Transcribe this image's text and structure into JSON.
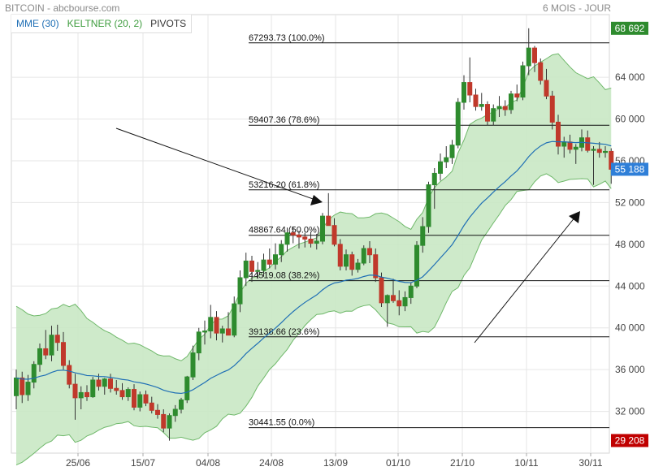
{
  "header": {
    "title": "BITCOIN - abcbourse.com",
    "period": "6 MOIS - JOUR"
  },
  "legend": {
    "mme": "MME (30)",
    "keltner": "KELTNER (20, 2)",
    "pivots": "PIVOTS"
  },
  "colors": {
    "up": "#2e8b2e",
    "down": "#c0392b",
    "band_fill": "#c9e8c4",
    "band_line": "#6fb86a",
    "mme": "#1f6fb5",
    "last_price_tag": "#2f7fd8",
    "high_tag": "#2e8b2e",
    "low_tag": "#c00000"
  },
  "chart_data": {
    "type": "candlestick",
    "y_ticks": [
      {
        "value": 32000,
        "label": "32 000"
      },
      {
        "value": 36000,
        "label": "36 000"
      },
      {
        "value": 40000,
        "label": "40 000"
      },
      {
        "value": 44000,
        "label": "44 000"
      },
      {
        "value": 48000,
        "label": "48 000"
      },
      {
        "value": 52000,
        "label": "52 000"
      },
      {
        "value": 56000,
        "label": "56 000"
      },
      {
        "value": 60000,
        "label": "60 000"
      },
      {
        "value": 64000,
        "label": "64 000"
      }
    ],
    "x_ticks": [
      "25/06",
      "15/07",
      "04/08",
      "24/08",
      "13/09",
      "01/10",
      "21/10",
      "10/11",
      "30/11"
    ],
    "ylim": [
      28000,
      70000
    ],
    "fib_levels": [
      {
        "value": 67293.73,
        "label": "67293.73 (100.0%)"
      },
      {
        "value": 59407.36,
        "label": "59407.36 (78.6%)"
      },
      {
        "value": 53216.2,
        "label": "53216.20 (61.8%)"
      },
      {
        "value": 48867.64,
        "label": "48867.64 (50.0%)"
      },
      {
        "value": 44519.08,
        "label": "44519.08 (38.2%)"
      },
      {
        "value": 39138.66,
        "label": "39138.66 (23.6%)"
      },
      {
        "value": 30441.55,
        "label": "30441.55 (0.0%)"
      }
    ],
    "tags": {
      "high": {
        "value": 68692,
        "label": "68 692"
      },
      "last": {
        "value": 55188,
        "label": "55 188"
      },
      "low": {
        "value": 29208,
        "label": "29 208"
      }
    },
    "candles": [
      {
        "o": 33500,
        "h": 36000,
        "l": 32200,
        "c": 35200
      },
      {
        "o": 35200,
        "h": 35800,
        "l": 32800,
        "c": 33600
      },
      {
        "o": 33600,
        "h": 35500,
        "l": 33000,
        "c": 34800
      },
      {
        "o": 34800,
        "h": 36800,
        "l": 34200,
        "c": 36500
      },
      {
        "o": 36500,
        "h": 38500,
        "l": 35800,
        "c": 38000
      },
      {
        "o": 38000,
        "h": 39800,
        "l": 37000,
        "c": 37400
      },
      {
        "o": 37400,
        "h": 40200,
        "l": 36800,
        "c": 39300
      },
      {
        "o": 39300,
        "h": 40300,
        "l": 37800,
        "c": 38600
      },
      {
        "o": 38600,
        "h": 39600,
        "l": 36000,
        "c": 36400
      },
      {
        "o": 36400,
        "h": 36900,
        "l": 34200,
        "c": 34600
      },
      {
        "o": 34600,
        "h": 35600,
        "l": 31200,
        "c": 33300
      },
      {
        "o": 33300,
        "h": 34400,
        "l": 32200,
        "c": 33800
      },
      {
        "o": 33800,
        "h": 34500,
        "l": 33000,
        "c": 33400
      },
      {
        "o": 33400,
        "h": 35300,
        "l": 33300,
        "c": 35000
      },
      {
        "o": 35000,
        "h": 35600,
        "l": 34000,
        "c": 34400
      },
      {
        "o": 34400,
        "h": 35200,
        "l": 33600,
        "c": 35100
      },
      {
        "o": 35100,
        "h": 35600,
        "l": 33800,
        "c": 34200
      },
      {
        "o": 34200,
        "h": 35000,
        "l": 33600,
        "c": 34000
      },
      {
        "o": 34000,
        "h": 34700,
        "l": 33100,
        "c": 33400
      },
      {
        "o": 33400,
        "h": 34300,
        "l": 33000,
        "c": 34100
      },
      {
        "o": 34100,
        "h": 34600,
        "l": 32100,
        "c": 32400
      },
      {
        "o": 32400,
        "h": 33900,
        "l": 32000,
        "c": 33600
      },
      {
        "o": 33600,
        "h": 34000,
        "l": 32500,
        "c": 32800
      },
      {
        "o": 32800,
        "h": 33400,
        "l": 31800,
        "c": 32100
      },
      {
        "o": 32100,
        "h": 32700,
        "l": 31300,
        "c": 31700
      },
      {
        "o": 31700,
        "h": 32200,
        "l": 30000,
        "c": 30400
      },
      {
        "o": 30400,
        "h": 31800,
        "l": 29200,
        "c": 31600
      },
      {
        "o": 31600,
        "h": 32600,
        "l": 31000,
        "c": 32200
      },
      {
        "o": 32200,
        "h": 33300,
        "l": 31800,
        "c": 33100
      },
      {
        "o": 33100,
        "h": 35400,
        "l": 32800,
        "c": 35300
      },
      {
        "o": 35300,
        "h": 38300,
        "l": 35000,
        "c": 37600
      },
      {
        "o": 37600,
        "h": 40000,
        "l": 36900,
        "c": 39600
      },
      {
        "o": 39600,
        "h": 40700,
        "l": 38400,
        "c": 39700
      },
      {
        "o": 39700,
        "h": 42200,
        "l": 39000,
        "c": 41000
      },
      {
        "o": 41000,
        "h": 41600,
        "l": 38800,
        "c": 39500
      },
      {
        "o": 39500,
        "h": 40200,
        "l": 38600,
        "c": 39900
      },
      {
        "o": 39900,
        "h": 41500,
        "l": 39300,
        "c": 39300
      },
      {
        "o": 39300,
        "h": 43000,
        "l": 39100,
        "c": 42300
      },
      {
        "o": 42300,
        "h": 45500,
        "l": 41500,
        "c": 44800
      },
      {
        "o": 44800,
        "h": 47200,
        "l": 44000,
        "c": 46400
      },
      {
        "o": 46400,
        "h": 46900,
        "l": 44400,
        "c": 45400
      },
      {
        "o": 45400,
        "h": 46300,
        "l": 44700,
        "c": 45500
      },
      {
        "o": 45500,
        "h": 47100,
        "l": 44900,
        "c": 46500
      },
      {
        "o": 46500,
        "h": 47600,
        "l": 45700,
        "c": 46100
      },
      {
        "o": 46100,
        "h": 48100,
        "l": 45600,
        "c": 47000
      },
      {
        "o": 47000,
        "h": 48400,
        "l": 46300,
        "c": 48000
      },
      {
        "o": 48000,
        "h": 49600,
        "l": 47300,
        "c": 49100
      },
      {
        "o": 49100,
        "h": 49700,
        "l": 48100,
        "c": 48900
      },
      {
        "o": 48900,
        "h": 49300,
        "l": 47600,
        "c": 48700
      },
      {
        "o": 48700,
        "h": 49100,
        "l": 47700,
        "c": 48500
      },
      {
        "o": 48500,
        "h": 49200,
        "l": 47700,
        "c": 48100
      },
      {
        "o": 48100,
        "h": 49000,
        "l": 47500,
        "c": 48300
      },
      {
        "o": 48300,
        "h": 51000,
        "l": 48000,
        "c": 50700
      },
      {
        "o": 50700,
        "h": 52900,
        "l": 50000,
        "c": 49800
      },
      {
        "o": 49800,
        "h": 50500,
        "l": 47800,
        "c": 48000
      },
      {
        "o": 48000,
        "h": 48500,
        "l": 45500,
        "c": 45900
      },
      {
        "o": 45900,
        "h": 47500,
        "l": 45500,
        "c": 47000
      },
      {
        "o": 47000,
        "h": 47300,
        "l": 45000,
        "c": 45600
      },
      {
        "o": 45600,
        "h": 46600,
        "l": 45300,
        "c": 46200
      },
      {
        "o": 46200,
        "h": 47900,
        "l": 46000,
        "c": 47600
      },
      {
        "o": 47600,
        "h": 48300,
        "l": 46200,
        "c": 47000
      },
      {
        "o": 47000,
        "h": 47600,
        "l": 44400,
        "c": 44800
      },
      {
        "o": 44800,
        "h": 45300,
        "l": 42000,
        "c": 42400
      },
      {
        "o": 42400,
        "h": 43200,
        "l": 40100,
        "c": 43100
      },
      {
        "o": 43100,
        "h": 44700,
        "l": 42400,
        "c": 42600
      },
      {
        "o": 42600,
        "h": 43600,
        "l": 41200,
        "c": 42100
      },
      {
        "o": 42100,
        "h": 43500,
        "l": 41600,
        "c": 42900
      },
      {
        "o": 42900,
        "h": 44300,
        "l": 42300,
        "c": 44000
      },
      {
        "o": 44000,
        "h": 48300,
        "l": 43800,
        "c": 47900
      },
      {
        "o": 47900,
        "h": 50600,
        "l": 47200,
        "c": 49700
      },
      {
        "o": 49700,
        "h": 54000,
        "l": 49100,
        "c": 53700
      },
      {
        "o": 53700,
        "h": 55300,
        "l": 51400,
        "c": 54800
      },
      {
        "o": 54800,
        "h": 56700,
        "l": 54100,
        "c": 55900
      },
      {
        "o": 55900,
        "h": 57400,
        "l": 55300,
        "c": 56300
      },
      {
        "o": 56300,
        "h": 58000,
        "l": 55700,
        "c": 57500
      },
      {
        "o": 57500,
        "h": 62000,
        "l": 57200,
        "c": 61600
      },
      {
        "o": 61600,
        "h": 64200,
        "l": 60900,
        "c": 63500
      },
      {
        "o": 63500,
        "h": 65900,
        "l": 61600,
        "c": 62300
      },
      {
        "o": 62300,
        "h": 62900,
        "l": 60800,
        "c": 61200
      },
      {
        "o": 61200,
        "h": 62500,
        "l": 60800,
        "c": 61400
      },
      {
        "o": 61400,
        "h": 61700,
        "l": 59400,
        "c": 59800
      },
      {
        "o": 59800,
        "h": 61400,
        "l": 59400,
        "c": 61000
      },
      {
        "o": 61000,
        "h": 62200,
        "l": 60200,
        "c": 61200
      },
      {
        "o": 61200,
        "h": 61800,
        "l": 60300,
        "c": 60900
      },
      {
        "o": 60900,
        "h": 62700,
        "l": 60500,
        "c": 62400
      },
      {
        "o": 62400,
        "h": 63300,
        "l": 61700,
        "c": 62100
      },
      {
        "o": 62100,
        "h": 65500,
        "l": 61800,
        "c": 65100
      },
      {
        "o": 65100,
        "h": 68692,
        "l": 64200,
        "c": 66800
      },
      {
        "o": 66800,
        "h": 67000,
        "l": 64500,
        "c": 65400
      },
      {
        "o": 65400,
        "h": 65800,
        "l": 63300,
        "c": 63700
      },
      {
        "o": 63700,
        "h": 64800,
        "l": 61900,
        "c": 62200
      },
      {
        "o": 62200,
        "h": 62700,
        "l": 59000,
        "c": 59700
      },
      {
        "o": 59700,
        "h": 60400,
        "l": 56600,
        "c": 57400
      },
      {
        "o": 57400,
        "h": 58300,
        "l": 56300,
        "c": 57800
      },
      {
        "o": 57800,
        "h": 58500,
        "l": 56700,
        "c": 57100
      },
      {
        "o": 57100,
        "h": 57600,
        "l": 55700,
        "c": 57300
      },
      {
        "o": 57300,
        "h": 59000,
        "l": 56900,
        "c": 58200
      },
      {
        "o": 58200,
        "h": 58900,
        "l": 56800,
        "c": 57000
      },
      {
        "o": 57000,
        "h": 57400,
        "l": 53700,
        "c": 57100
      },
      {
        "o": 57100,
        "h": 57800,
        "l": 56300,
        "c": 56800
      },
      {
        "o": 56800,
        "h": 57400,
        "l": 56300,
        "c": 56900
      },
      {
        "o": 56900,
        "h": 57200,
        "l": 53800,
        "c": 55188
      }
    ]
  }
}
